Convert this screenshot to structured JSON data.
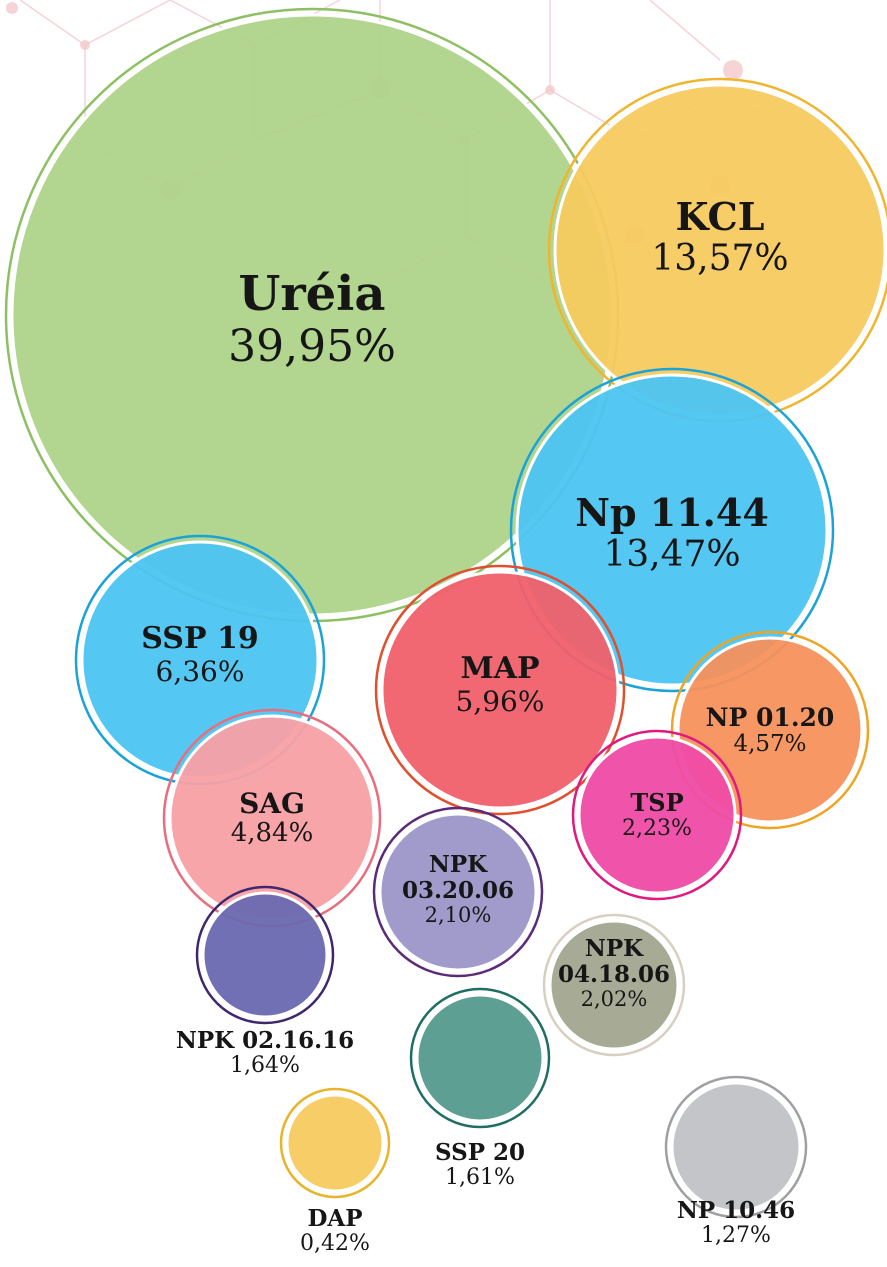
{
  "chart_data": {
    "type": "bubble",
    "categories": [
      "Uréia",
      "KCL",
      "Np 11.44",
      "SSP 19",
      "MAP",
      "NP 01.20",
      "SAG",
      "TSP",
      "NPK 03.20.06",
      "NPK 04.18.06",
      "NPK 02.16.16",
      "SSP 20",
      "DAP",
      "NP 10.46"
    ],
    "values": [
      39.95,
      13.57,
      13.47,
      6.36,
      5.96,
      4.57,
      4.84,
      2.23,
      2.1,
      2.02,
      1.64,
      1.61,
      0.42,
      1.27
    ],
    "value_labels": [
      "39,95%",
      "13,57%",
      "13,47%",
      "6,36%",
      "5,96%",
      "4,57%",
      "4,84%",
      "2,23%",
      "2,10%",
      "2,02%",
      "1,64%",
      "1,61%",
      "0,42%",
      "1,27%"
    ],
    "colors": [
      "#aed38a",
      "#f6ca5f",
      "#4cc4f2",
      "#4cc4f2",
      "#f0606a",
      "#f5915c",
      "#f8a0a5",
      "#ef4ba5",
      "#9b96c7",
      "#a2a58f",
      "#6a68b0",
      "#559a8e",
      "#f6ca5f",
      "#c1c2c5"
    ],
    "outline_colors": [
      "#8dc063",
      "#f0b52d",
      "#1aa3d8",
      "#1aa3d8",
      "#e0502e",
      "#efa424",
      "#ea6d7d",
      "#e0187f",
      "#5b2a79",
      "#d8cfc0",
      "#3f2770",
      "#1e6e63",
      "#e8b42a",
      "#9fa0a3"
    ]
  }
}
